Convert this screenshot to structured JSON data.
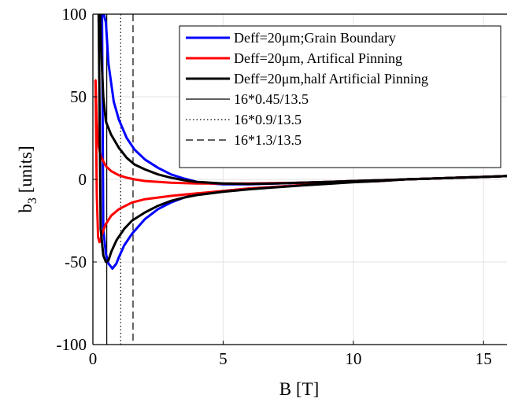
{
  "chart_data": {
    "type": "line",
    "title": "",
    "xlabel": "B [T]",
    "ylabel_main": "b",
    "ylabel_sub": "3",
    "ylabel_rest": " [units]",
    "xlim": [
      0,
      15.9
    ],
    "ylim": [
      -100,
      100
    ],
    "x_ticks": [
      0,
      5,
      10,
      15
    ],
    "y_ticks": [
      -100,
      -50,
      0,
      50,
      100
    ],
    "x_tick_labels": [
      "0",
      "5",
      "10",
      "15"
    ],
    "y_tick_labels": [
      "-100",
      "-50",
      "0",
      "50",
      "100"
    ],
    "grid": true,
    "legend_position": "top-right",
    "series": [
      {
        "name": "Deff=20μm;Grain Boundary",
        "color": "#0000ff",
        "branches": [
          [
            [
              0.42,
              100
            ],
            [
              0.5,
              95
            ],
            [
              0.6,
              70
            ],
            [
              0.8,
              47
            ],
            [
              1.0,
              36
            ],
            [
              1.3,
              25
            ],
            [
              1.6,
              18
            ],
            [
              2.0,
              12
            ],
            [
              2.5,
              7
            ],
            [
              3.0,
              3
            ],
            [
              3.5,
              0.5
            ],
            [
              4.0,
              -1.5
            ],
            [
              4.5,
              -2.5
            ],
            [
              5.0,
              -3
            ],
            [
              6.0,
              -3
            ],
            [
              7.0,
              -2.5
            ],
            [
              8.0,
              -2
            ],
            [
              9.0,
              -1.5
            ],
            [
              10.0,
              -1
            ],
            [
              11.0,
              -0.5
            ],
            [
              12.0,
              0
            ],
            [
              13.0,
              0.5
            ],
            [
              14.0,
              1
            ],
            [
              15.0,
              1.5
            ],
            [
              15.9,
              2
            ]
          ],
          [
            [
              0.35,
              100
            ],
            [
              0.4,
              -30
            ],
            [
              0.5,
              -45
            ],
            [
              0.6,
              -51
            ],
            [
              0.75,
              -54
            ],
            [
              0.9,
              -51
            ],
            [
              1.0,
              -47
            ],
            [
              1.2,
              -40
            ],
            [
              1.5,
              -33
            ],
            [
              2.0,
              -24
            ],
            [
              2.5,
              -18
            ],
            [
              3.0,
              -14
            ],
            [
              3.5,
              -11
            ],
            [
              4.0,
              -9
            ],
            [
              5.0,
              -7
            ],
            [
              6.0,
              -5.5
            ],
            [
              7.0,
              -4.5
            ],
            [
              8.0,
              -3.5
            ],
            [
              9.0,
              -2.5
            ],
            [
              10.0,
              -1.5
            ],
            [
              11.0,
              -1
            ],
            [
              12.0,
              0
            ],
            [
              13.0,
              0.5
            ],
            [
              14.0,
              1
            ],
            [
              15.0,
              1.5
            ],
            [
              15.9,
              2
            ]
          ]
        ]
      },
      {
        "name": "Deff=20μm, Artifical Pinning",
        "color": "#ff0000",
        "branches": [
          [
            [
              0.08,
              60
            ],
            [
              0.1,
              60
            ],
            [
              0.15,
              35
            ],
            [
              0.2,
              22
            ],
            [
              0.3,
              14
            ],
            [
              0.5,
              8
            ],
            [
              0.7,
              5
            ],
            [
              1.0,
              2.5
            ],
            [
              1.3,
              1
            ],
            [
              1.6,
              0
            ],
            [
              2.0,
              -1
            ],
            [
              3.0,
              -2
            ],
            [
              4.0,
              -2.5
            ],
            [
              5.0,
              -2.5
            ],
            [
              6.0,
              -2.5
            ],
            [
              7.0,
              -2.3
            ],
            [
              8.0,
              -2
            ],
            [
              9.0,
              -1.5
            ],
            [
              10.0,
              -1
            ],
            [
              11.0,
              -0.5
            ],
            [
              12.0,
              0
            ],
            [
              13.0,
              0.5
            ],
            [
              14.0,
              1
            ],
            [
              15.0,
              1.5
            ],
            [
              15.9,
              2
            ]
          ],
          [
            [
              0.1,
              60
            ],
            [
              0.15,
              -10
            ],
            [
              0.2,
              -35
            ],
            [
              0.25,
              -38
            ],
            [
              0.3,
              -36
            ],
            [
              0.4,
              -31
            ],
            [
              0.5,
              -27
            ],
            [
              0.7,
              -22
            ],
            [
              1.0,
              -18
            ],
            [
              1.5,
              -14
            ],
            [
              2.0,
              -12
            ],
            [
              3.0,
              -10
            ],
            [
              4.0,
              -8.5
            ],
            [
              5.0,
              -7
            ],
            [
              6.0,
              -5.5
            ],
            [
              7.0,
              -4.5
            ],
            [
              8.0,
              -3.5
            ],
            [
              9.0,
              -2.5
            ],
            [
              10.0,
              -1.5
            ],
            [
              11.0,
              -1
            ],
            [
              12.0,
              0
            ],
            [
              13.0,
              0.5
            ],
            [
              14.0,
              1
            ],
            [
              15.0,
              1.5
            ],
            [
              15.9,
              2
            ]
          ]
        ]
      },
      {
        "name": "Deff=20μm,half Artificial Pinning",
        "color": "#000000",
        "branches": [
          [
            [
              0.28,
              100
            ],
            [
              0.3,
              85
            ],
            [
              0.4,
              50
            ],
            [
              0.5,
              35
            ],
            [
              0.7,
              27
            ],
            [
              1.0,
              19
            ],
            [
              1.3,
              13
            ],
            [
              1.6,
              9
            ],
            [
              2.0,
              6
            ],
            [
              2.5,
              3
            ],
            [
              3.0,
              1
            ],
            [
              3.5,
              -0.5
            ],
            [
              4.0,
              -1.5
            ],
            [
              5.0,
              -2.5
            ],
            [
              6.0,
              -2.8
            ],
            [
              7.0,
              -2.5
            ],
            [
              8.0,
              -2
            ],
            [
              9.0,
              -1.5
            ],
            [
              10.0,
              -1
            ],
            [
              11.0,
              -0.5
            ],
            [
              12.0,
              0
            ],
            [
              13.0,
              0.5
            ],
            [
              14.0,
              1
            ],
            [
              15.0,
              1.5
            ],
            [
              15.9,
              2
            ]
          ],
          [
            [
              0.22,
              100
            ],
            [
              0.3,
              -30
            ],
            [
              0.4,
              -46
            ],
            [
              0.5,
              -50
            ],
            [
              0.6,
              -49
            ],
            [
              0.7,
              -44
            ],
            [
              0.9,
              -37
            ],
            [
              1.2,
              -30
            ],
            [
              1.5,
              -25
            ],
            [
              2.0,
              -20
            ],
            [
              2.5,
              -16
            ],
            [
              3.0,
              -13
            ],
            [
              3.5,
              -11
            ],
            [
              4.0,
              -9.5
            ],
            [
              5.0,
              -7.5
            ],
            [
              6.0,
              -6
            ],
            [
              7.0,
              -4.8
            ],
            [
              8.0,
              -3.7
            ],
            [
              9.0,
              -2.7
            ],
            [
              10.0,
              -1.7
            ],
            [
              11.0,
              -1
            ],
            [
              12.0,
              0
            ],
            [
              13.0,
              0.5
            ],
            [
              14.0,
              1
            ],
            [
              15.0,
              1.5
            ],
            [
              15.9,
              2
            ]
          ]
        ]
      }
    ],
    "vlines": [
      {
        "name": "16*0.45/13.5",
        "x": 0.533,
        "style": "solid",
        "color": "#000000"
      },
      {
        "name": "16*0.9/13.5",
        "x": 1.067,
        "style": "dotted",
        "color": "#000000"
      },
      {
        "name": "16*1.3/13.5",
        "x": 1.541,
        "style": "dashed",
        "color": "#000000"
      }
    ]
  }
}
